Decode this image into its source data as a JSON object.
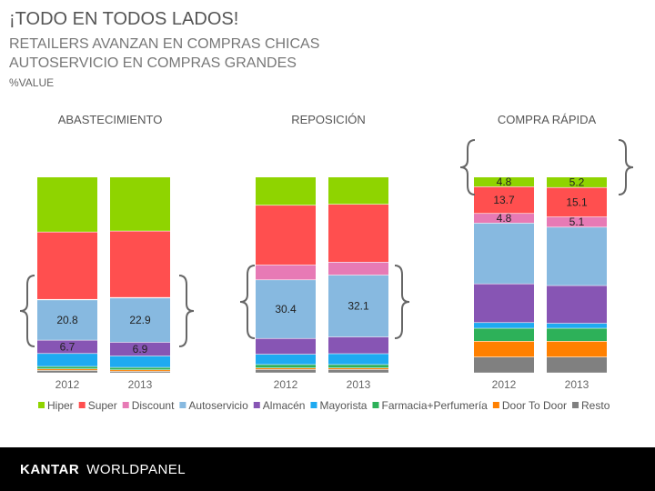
{
  "header": {
    "title": "¡TODO EN TODOS LADOS!",
    "subtitle_line1": "RETAILERS AVANZAN EN COMPRAS CHICAS",
    "subtitle_line2": "AUTOSERVICIO EN COMPRAS GRANDES",
    "unit": "%VALUE"
  },
  "footer": {
    "brand_a": "KANTAR",
    "brand_b": "WORLDPANEL"
  },
  "chart_data": {
    "type": "bar",
    "stacked": true,
    "ylim": [
      0,
      100
    ],
    "groups": [
      "ABASTECIMIENTO",
      "REPOSICIÓN",
      "COMPRA RÁPIDA"
    ],
    "categories": [
      "2012",
      "2013"
    ],
    "series_names": [
      "Hiper",
      "Super",
      "Discount",
      "Autoservicio",
      "Almacén",
      "Mayorista",
      "Farmacia+Perfumería",
      "Door To Door",
      "Resto"
    ],
    "series_colors": [
      "#8fd400",
      "#ff4f4f",
      "#e77ab5",
      "#87b9e0",
      "#8755b4",
      "#1eaaf1",
      "#2db159",
      "#ff8000",
      "#808080"
    ],
    "bars": [
      {
        "group": "ABASTECIMIENTO",
        "year": "2012",
        "values": [
          28.5,
          35.0,
          0.0,
          20.8,
          6.7,
          6.5,
          1.0,
          0.5,
          1.0
        ]
      },
      {
        "group": "ABASTECIMIENTO",
        "year": "2013",
        "values": [
          28.0,
          34.5,
          0.0,
          22.9,
          6.9,
          5.7,
          1.0,
          0.5,
          0.5
        ]
      },
      {
        "group": "REPOSICIÓN",
        "year": "2012",
        "values": [
          14.5,
          31.0,
          7.5,
          30.4,
          8.0,
          5.1,
          1.5,
          0.5,
          1.5
        ]
      },
      {
        "group": "REPOSICIÓN",
        "year": "2013",
        "values": [
          14.0,
          30.0,
          6.5,
          32.1,
          8.5,
          5.4,
          1.5,
          0.5,
          1.5
        ]
      },
      {
        "group": "COMPRA RÁPIDA",
        "year": "2012",
        "values": [
          4.8,
          13.7,
          4.8,
          31.5,
          20.0,
          2.7,
          6.5,
          8.0,
          8.0
        ]
      },
      {
        "group": "COMPRA RÁPIDA",
        "year": "2013",
        "values": [
          5.2,
          15.1,
          5.1,
          30.3,
          19.5,
          2.3,
          6.5,
          8.0,
          8.0
        ]
      }
    ],
    "data_labels": [
      {
        "group": "ABASTECIMIENTO",
        "year": "2012",
        "series": "Autoservicio",
        "text": "20.8"
      },
      {
        "group": "ABASTECIMIENTO",
        "year": "2012",
        "series": "Almacén",
        "text": "6.7"
      },
      {
        "group": "ABASTECIMIENTO",
        "year": "2013",
        "series": "Autoservicio",
        "text": "22.9"
      },
      {
        "group": "ABASTECIMIENTO",
        "year": "2013",
        "series": "Almacén",
        "text": "6.9"
      },
      {
        "group": "REPOSICIÓN",
        "year": "2012",
        "series": "Autoservicio",
        "text": "30.4"
      },
      {
        "group": "REPOSICIÓN",
        "year": "2013",
        "series": "Autoservicio",
        "text": "32.1"
      },
      {
        "group": "COMPRA RÁPIDA",
        "year": "2012",
        "series": "Hiper",
        "text": "4.8"
      },
      {
        "group": "COMPRA RÁPIDA",
        "year": "2012",
        "series": "Super",
        "text": "13.7"
      },
      {
        "group": "COMPRA RÁPIDA",
        "year": "2012",
        "series": "Discount",
        "text": "4.8"
      },
      {
        "group": "COMPRA RÁPIDA",
        "year": "2013",
        "series": "Hiper",
        "text": "5.2"
      },
      {
        "group": "COMPRA RÁPIDA",
        "year": "2013",
        "series": "Super",
        "text": "15.1"
      },
      {
        "group": "COMPRA RÁPIDA",
        "year": "2013",
        "series": "Discount",
        "text": "5.1"
      }
    ],
    "legend_position": "bottom"
  }
}
